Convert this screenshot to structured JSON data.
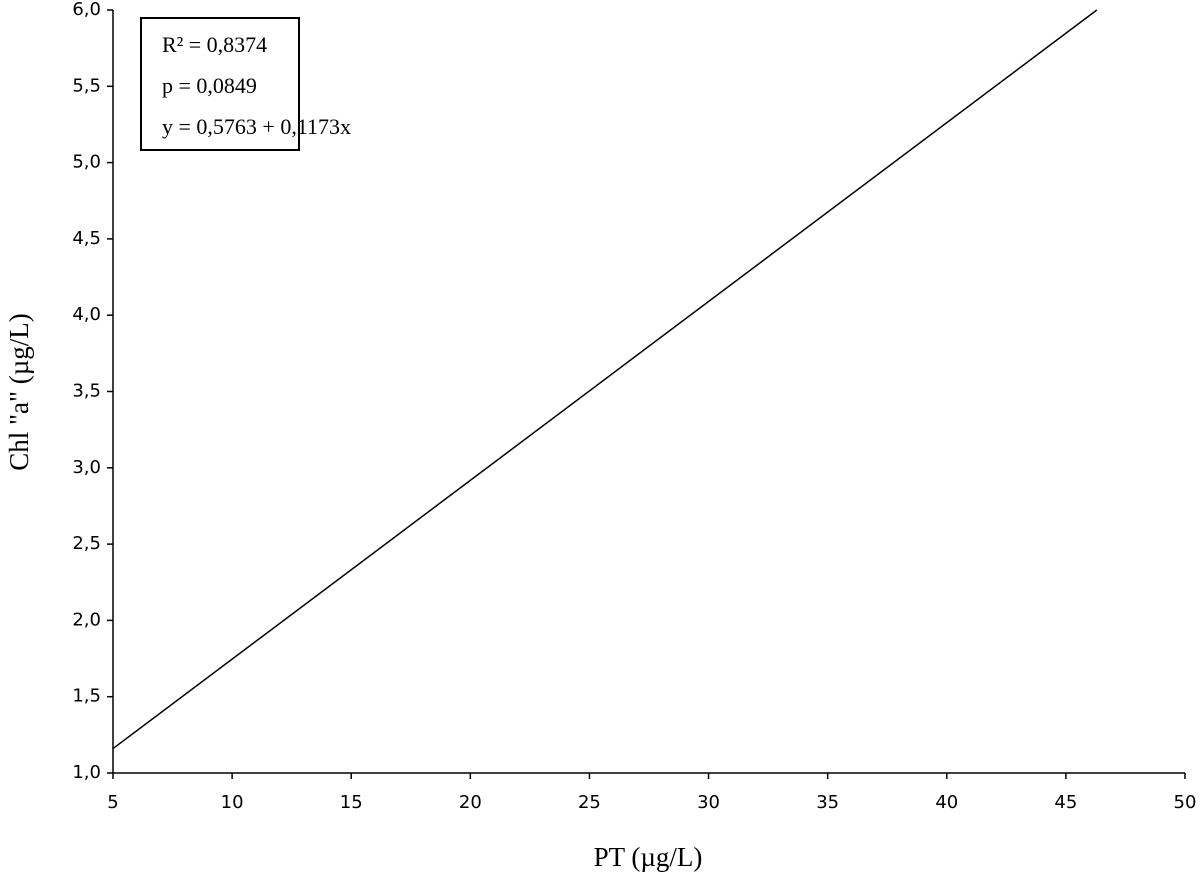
{
  "chart_data": {
    "type": "line",
    "annotations": [
      "R² = 0,8374",
      "p = 0,0849",
      "y = 0,5763 + 0,1173x"
    ],
    "x_label": "PT (µg/L)",
    "y_label": "Chl \"a\" (µg/L)",
    "x": [
      5,
      46.3
    ],
    "series": [
      {
        "color": "#000000",
        "values": [
          1.16,
          6.0
        ]
      }
    ],
    "xlim": [
      5,
      50
    ],
    "ylim": [
      1,
      6
    ],
    "xticks": [
      5,
      10,
      15,
      20,
      25,
      30,
      35,
      40,
      45,
      50
    ],
    "yticks": [
      {
        "value": 1,
        "label": "1,0"
      },
      {
        "value": 1.5,
        "label": "1,5"
      },
      {
        "value": 2,
        "label": "2,0"
      },
      {
        "value": 2.5,
        "label": "2,5"
      },
      {
        "value": 3,
        "label": "3,0"
      },
      {
        "value": 3.5,
        "label": "3,5"
      },
      {
        "value": 4,
        "label": "4,0"
      },
      {
        "value": 4.5,
        "label": "4,5"
      },
      {
        "value": 5,
        "label": "5,0"
      },
      {
        "value": 5.5,
        "label": "5,5"
      },
      {
        "value": 6,
        "label": "6,0"
      }
    ]
  }
}
